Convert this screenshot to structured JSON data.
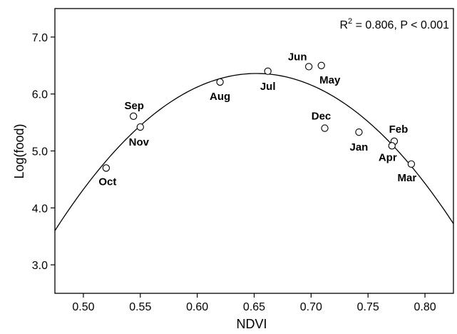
{
  "chart_data": {
    "type": "scatter",
    "xlabel": "NDVI",
    "ylabel": "Log(food)",
    "xlim": [
      0.475,
      0.825
    ],
    "ylim": [
      2.5,
      7.5
    ],
    "xticks": [
      "0.50",
      "0.55",
      "0.60",
      "0.65",
      "0.70",
      "0.75",
      "0.80"
    ],
    "yticks": [
      "3.0",
      "4.0",
      "5.0",
      "6.0",
      "7.0"
    ],
    "annotation": {
      "prefix": "R",
      "sup": "2",
      "suffix": " = 0.806, P < 0.001"
    },
    "points": [
      {
        "label": "Oct",
        "x": 0.52,
        "y": 4.7
      },
      {
        "label": "Sep",
        "x": 0.544,
        "y": 5.61
      },
      {
        "label": "Nov",
        "x": 0.55,
        "y": 5.42
      },
      {
        "label": "Aug",
        "x": 0.62,
        "y": 6.21
      },
      {
        "label": "Jul",
        "x": 0.662,
        "y": 6.4
      },
      {
        "label": "Jun",
        "x": 0.698,
        "y": 6.48
      },
      {
        "label": "May",
        "x": 0.709,
        "y": 6.5
      },
      {
        "label": "Dec",
        "x": 0.712,
        "y": 5.4
      },
      {
        "label": "Jan",
        "x": 0.742,
        "y": 5.33
      },
      {
        "label": "Feb",
        "x": 0.773,
        "y": 5.17
      },
      {
        "label": "Apr",
        "x": 0.771,
        "y": 5.09
      },
      {
        "label": "Mar",
        "x": 0.788,
        "y": 4.77
      }
    ],
    "fit_curve": {
      "type": "quadratic",
      "vertex_x": 0.652,
      "vertex_y": 6.36,
      "value_at_xmin": 3.6
    },
    "grid": false,
    "legend": "none"
  }
}
